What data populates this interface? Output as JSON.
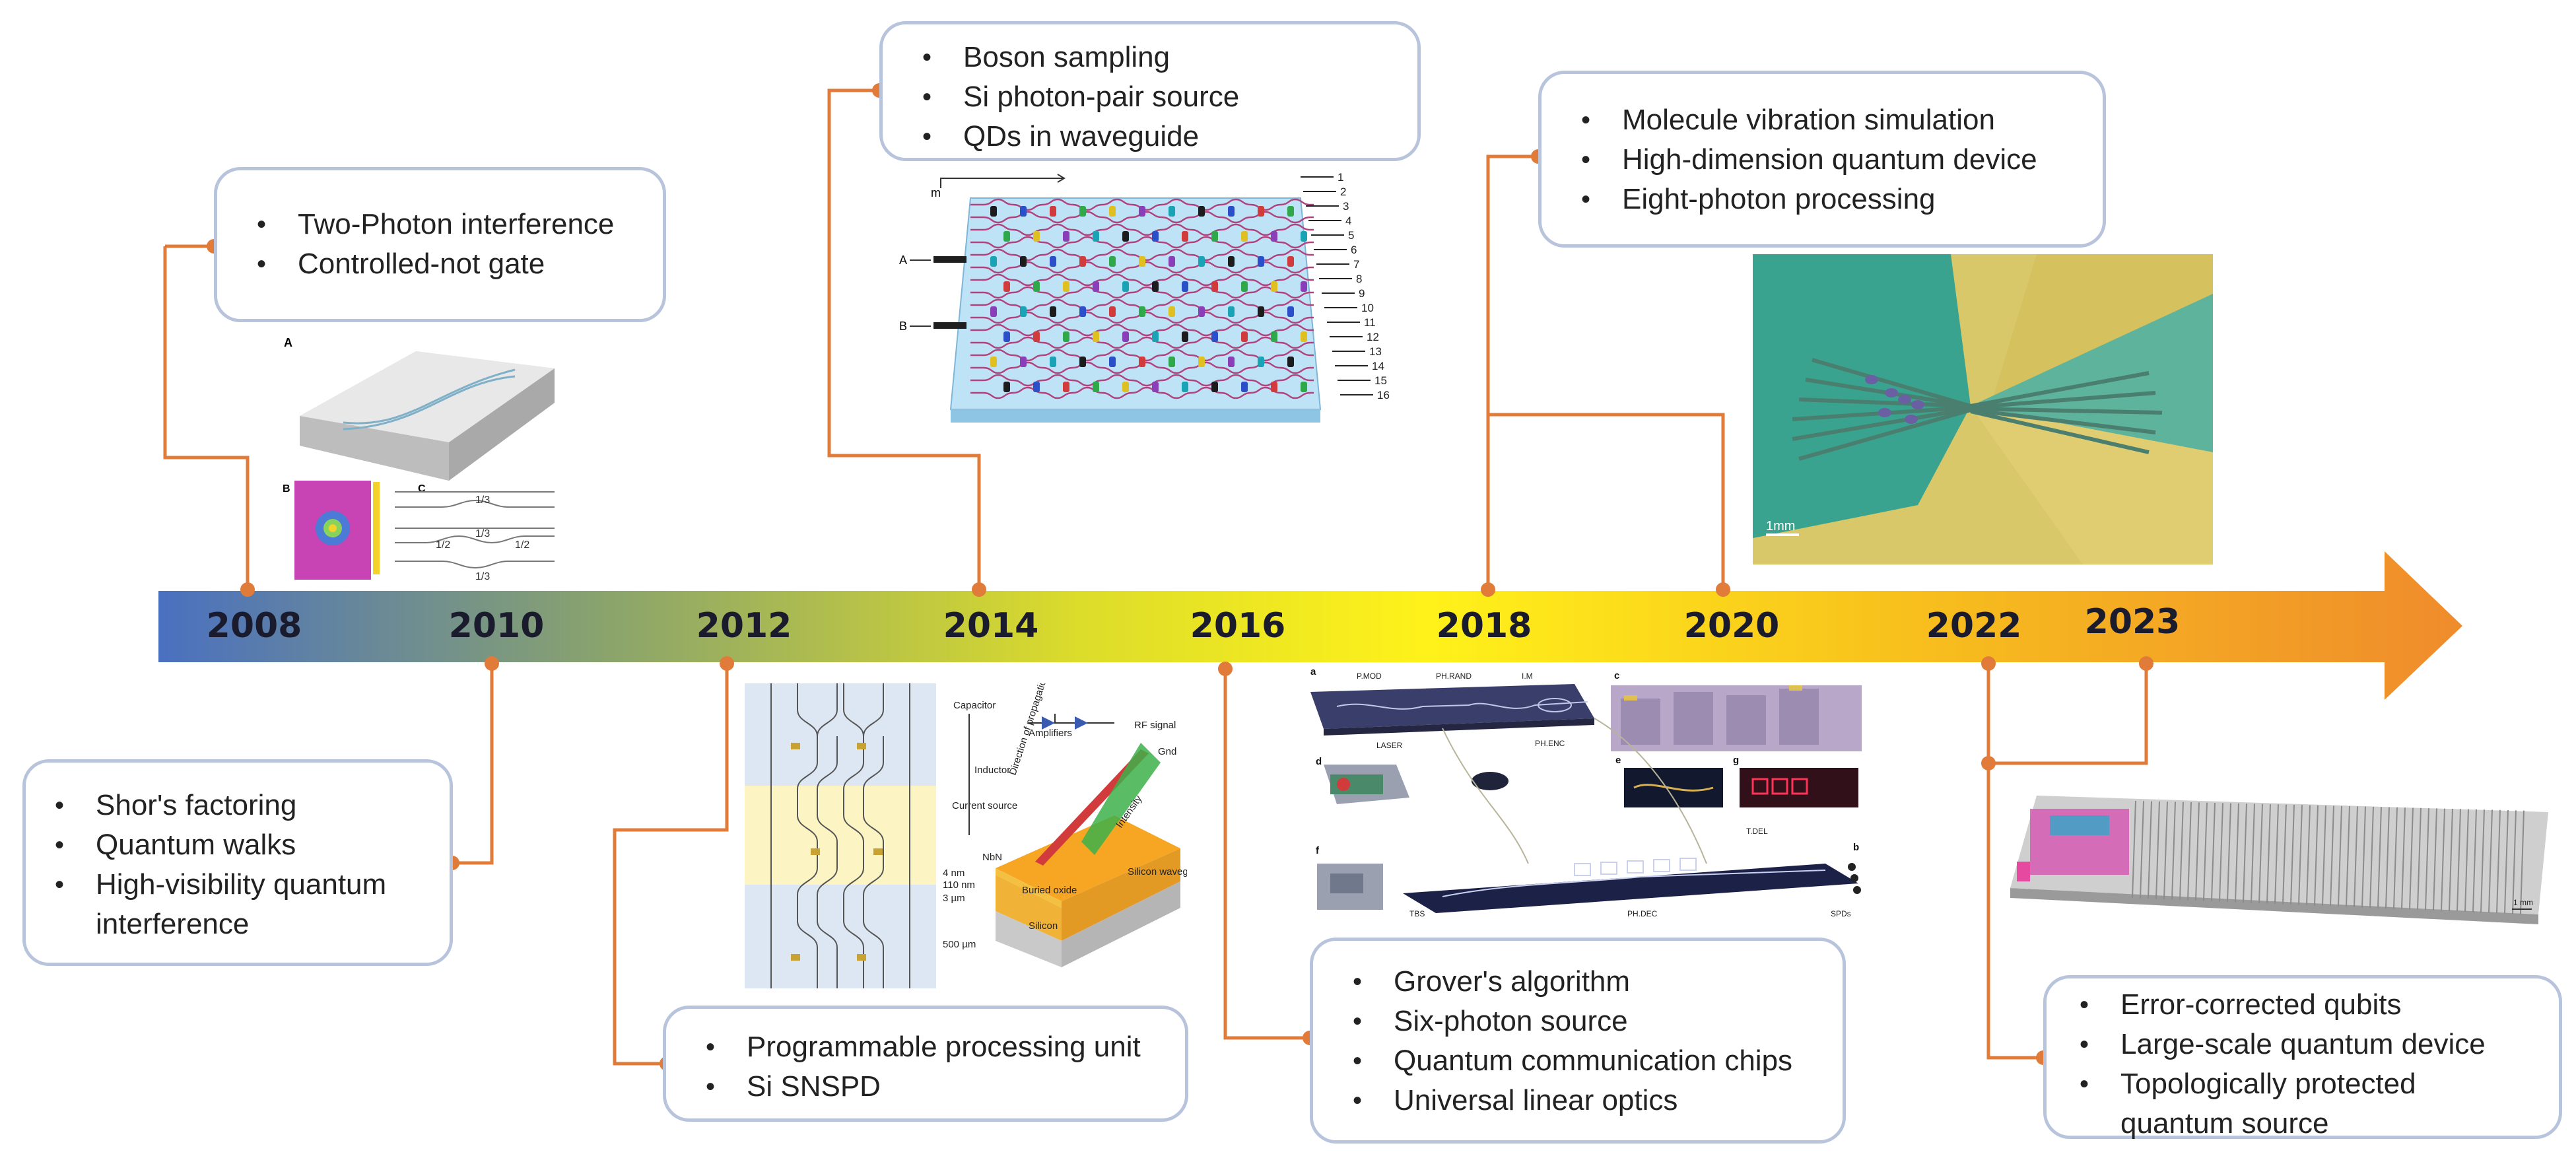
{
  "colors": {
    "connector": "#e07b39",
    "box_border": "#b8c4dc",
    "arrow_start": "#4a70c0",
    "arrow_mid": "#fff21a",
    "arrow_end": "#ef8b2c"
  },
  "timeline": {
    "years": [
      "2008",
      "2010",
      "2012",
      "2014",
      "2016",
      "2018",
      "2020",
      "2022",
      "2023"
    ]
  },
  "milestones": {
    "y2008": [
      "Two-Photon interference",
      "Controlled-not gate"
    ],
    "y2010": [
      "Shor's factoring",
      "Quantum walks",
      "High-visibility quantum interference"
    ],
    "y2012": [
      "Programmable processing unit",
      "Si SNSPD"
    ],
    "y2014": [
      "Boson sampling",
      "Si photon-pair source",
      "QDs in waveguide"
    ],
    "y2016": [
      "Grover's algorithm",
      "Six-photon source",
      "Quantum communication chips",
      "Universal linear optics"
    ],
    "y2018": [
      "Molecule vibration simulation",
      "High-dimension quantum device",
      "Eight-photon processing"
    ],
    "y2022": [
      "Error-corrected  qubits",
      "Large-scale quantum device",
      "Topologically protected quantum source"
    ]
  },
  "figures": {
    "fig2008": {
      "panel_a": "A",
      "panel_b": "B",
      "panel_c": "C",
      "split_1": "1/3",
      "split_2": "1/3",
      "split_3": "1/2",
      "split_4": "1/2",
      "split_5": "1/3"
    },
    "fig2012": {
      "capacitor": "Capacitor",
      "amplifiers": "Amplifiers",
      "rf_signal": "RF signal",
      "inductor": "Inductor",
      "current_source": "Current source",
      "gnd": "Gnd",
      "nbn": "NbN",
      "buried_oxide": "Buried oxide",
      "silicon": "Silicon",
      "silicon_waveguide": "Silicon waveguide",
      "direction": "Direction of propagation",
      "intensity": "Intensity",
      "t4": "4 nm",
      "t110": "110 nm",
      "t3": "3 µm",
      "t500": "500 µm"
    },
    "fig2014": {
      "m_label": "m",
      "input_a": "A",
      "input_b": "B",
      "outputs": [
        "1",
        "2",
        "3",
        "4",
        "5",
        "6",
        "7",
        "8",
        "9",
        "10",
        "11",
        "12",
        "13",
        "14",
        "15",
        "16"
      ]
    },
    "fig2016": {
      "a": "a",
      "b": "b",
      "c": "c",
      "d": "d",
      "e": "e",
      "f": "f",
      "g": "g",
      "p_mod": "P.MOD",
      "ph_rand": "PH.RAND",
      "im": "I.M",
      "laser": "LASER",
      "ph_enc": "PH.ENC",
      "t_del": "T.DEL",
      "ph_dec": "PH.DEC",
      "tbs": "TBS",
      "spds": "SPDs"
    },
    "fig2018": {
      "scale": "1mm"
    },
    "fig2022": {
      "scale": "1 mm"
    }
  }
}
